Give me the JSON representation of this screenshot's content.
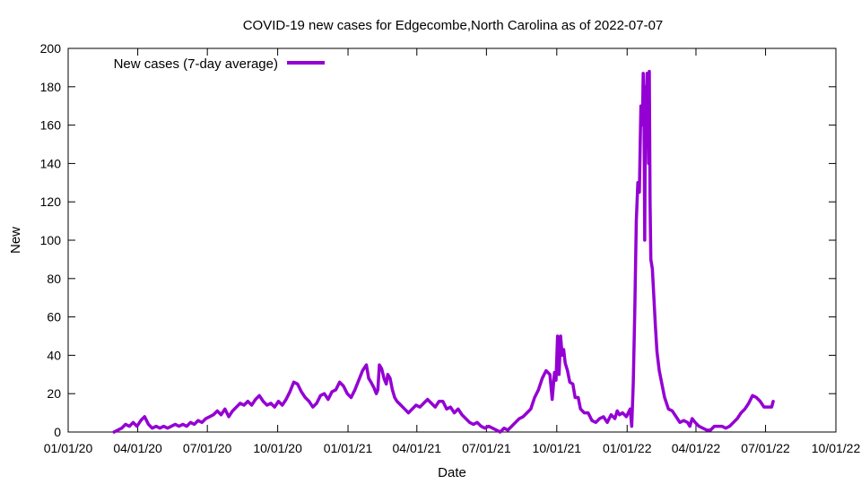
{
  "chart_data": {
    "type": "line",
    "title": "COVID-19 new cases for Edgecombe,North Carolina as of 2022-07-07",
    "xlabel": "Date",
    "ylabel": "New",
    "xlim": [
      0,
      1004
    ],
    "ylim": [
      0,
      200
    ],
    "y_ticks": [
      0,
      20,
      40,
      60,
      80,
      100,
      120,
      140,
      160,
      180,
      200
    ],
    "x_ticks": [
      {
        "day": 0,
        "label": "01/01/20"
      },
      {
        "day": 91,
        "label": "04/01/20"
      },
      {
        "day": 182,
        "label": "07/01/20"
      },
      {
        "day": 274,
        "label": "10/01/20"
      },
      {
        "day": 366,
        "label": "01/01/21"
      },
      {
        "day": 456,
        "label": "04/01/21"
      },
      {
        "day": 547,
        "label": "07/01/21"
      },
      {
        "day": 639,
        "label": "10/01/21"
      },
      {
        "day": 731,
        "label": "01/01/22"
      },
      {
        "day": 821,
        "label": "04/01/22"
      },
      {
        "day": 912,
        "label": "07/01/22"
      },
      {
        "day": 1004,
        "label": "10/01/22"
      }
    ],
    "legend_position": "top-left",
    "series": [
      {
        "name": "New cases (7-day average)",
        "color": "#9400d3",
        "x_unit": "days since 2020-01-01",
        "points": [
          [
            60,
            0
          ],
          [
            65,
            1
          ],
          [
            70,
            2
          ],
          [
            75,
            4
          ],
          [
            80,
            3
          ],
          [
            85,
            5
          ],
          [
            90,
            3
          ],
          [
            95,
            6
          ],
          [
            100,
            8
          ],
          [
            105,
            4
          ],
          [
            110,
            2
          ],
          [
            115,
            3
          ],
          [
            120,
            2
          ],
          [
            125,
            3
          ],
          [
            130,
            2
          ],
          [
            135,
            3
          ],
          [
            140,
            4
          ],
          [
            145,
            3
          ],
          [
            150,
            4
          ],
          [
            155,
            3
          ],
          [
            160,
            5
          ],
          [
            165,
            4
          ],
          [
            170,
            6
          ],
          [
            175,
            5
          ],
          [
            180,
            7
          ],
          [
            185,
            8
          ],
          [
            190,
            9
          ],
          [
            195,
            11
          ],
          [
            200,
            9
          ],
          [
            205,
            12
          ],
          [
            210,
            8
          ],
          [
            215,
            11
          ],
          [
            220,
            13
          ],
          [
            225,
            15
          ],
          [
            230,
            14
          ],
          [
            235,
            16
          ],
          [
            240,
            14
          ],
          [
            245,
            17
          ],
          [
            250,
            19
          ],
          [
            255,
            16
          ],
          [
            260,
            14
          ],
          [
            265,
            15
          ],
          [
            270,
            13
          ],
          [
            275,
            16
          ],
          [
            280,
            14
          ],
          [
            285,
            17
          ],
          [
            290,
            21
          ],
          [
            295,
            26
          ],
          [
            300,
            25
          ],
          [
            305,
            21
          ],
          [
            310,
            18
          ],
          [
            315,
            16
          ],
          [
            320,
            13
          ],
          [
            325,
            15
          ],
          [
            330,
            19
          ],
          [
            335,
            20
          ],
          [
            340,
            17
          ],
          [
            345,
            21
          ],
          [
            350,
            22
          ],
          [
            355,
            26
          ],
          [
            360,
            24
          ],
          [
            365,
            20
          ],
          [
            370,
            18
          ],
          [
            375,
            22
          ],
          [
            380,
            27
          ],
          [
            385,
            32
          ],
          [
            390,
            35
          ],
          [
            393,
            28
          ],
          [
            396,
            26
          ],
          [
            400,
            23
          ],
          [
            403,
            20
          ],
          [
            405,
            22
          ],
          [
            407,
            35
          ],
          [
            410,
            33
          ],
          [
            413,
            28
          ],
          [
            416,
            25
          ],
          [
            418,
            30
          ],
          [
            421,
            28
          ],
          [
            424,
            22
          ],
          [
            427,
            18
          ],
          [
            430,
            16
          ],
          [
            435,
            14
          ],
          [
            440,
            12
          ],
          [
            445,
            10
          ],
          [
            450,
            12
          ],
          [
            455,
            14
          ],
          [
            460,
            13
          ],
          [
            465,
            15
          ],
          [
            470,
            17
          ],
          [
            475,
            15
          ],
          [
            480,
            13
          ],
          [
            485,
            16
          ],
          [
            490,
            16
          ],
          [
            495,
            12
          ],
          [
            500,
            13
          ],
          [
            505,
            10
          ],
          [
            510,
            12
          ],
          [
            515,
            9
          ],
          [
            520,
            7
          ],
          [
            525,
            5
          ],
          [
            530,
            4
          ],
          [
            535,
            5
          ],
          [
            540,
            3
          ],
          [
            545,
            2
          ],
          [
            550,
            3
          ],
          [
            555,
            2
          ],
          [
            560,
            1
          ],
          [
            565,
            0
          ],
          [
            570,
            2
          ],
          [
            575,
            1
          ],
          [
            580,
            3
          ],
          [
            585,
            5
          ],
          [
            590,
            7
          ],
          [
            595,
            8
          ],
          [
            600,
            10
          ],
          [
            605,
            12
          ],
          [
            610,
            18
          ],
          [
            615,
            22
          ],
          [
            620,
            28
          ],
          [
            625,
            32
          ],
          [
            630,
            30
          ],
          [
            633,
            17
          ],
          [
            636,
            31
          ],
          [
            638,
            27
          ],
          [
            640,
            50
          ],
          [
            642,
            30
          ],
          [
            644,
            50
          ],
          [
            646,
            40
          ],
          [
            648,
            43
          ],
          [
            650,
            36
          ],
          [
            653,
            32
          ],
          [
            656,
            26
          ],
          [
            660,
            25
          ],
          [
            663,
            18
          ],
          [
            667,
            18
          ],
          [
            670,
            12
          ],
          [
            675,
            10
          ],
          [
            680,
            10
          ],
          [
            685,
            6
          ],
          [
            690,
            5
          ],
          [
            695,
            7
          ],
          [
            700,
            8
          ],
          [
            705,
            5
          ],
          [
            710,
            9
          ],
          [
            715,
            7
          ],
          [
            718,
            11
          ],
          [
            721,
            9
          ],
          [
            725,
            10
          ],
          [
            730,
            8
          ],
          [
            735,
            12
          ],
          [
            737,
            3
          ],
          [
            739,
            25
          ],
          [
            741,
            63
          ],
          [
            743,
            110
          ],
          [
            745,
            130
          ],
          [
            747,
            125
          ],
          [
            749,
            170
          ],
          [
            751,
            160
          ],
          [
            752,
            187
          ],
          [
            753,
            172
          ],
          [
            754,
            100
          ],
          [
            755,
            180
          ],
          [
            756,
            150
          ],
          [
            757,
            187
          ],
          [
            758,
            170
          ],
          [
            759,
            140
          ],
          [
            760,
            188
          ],
          [
            761,
            120
          ],
          [
            762,
            90
          ],
          [
            764,
            85
          ],
          [
            766,
            70
          ],
          [
            768,
            55
          ],
          [
            770,
            42
          ],
          [
            773,
            32
          ],
          [
            776,
            26
          ],
          [
            780,
            18
          ],
          [
            785,
            12
          ],
          [
            790,
            11
          ],
          [
            795,
            8
          ],
          [
            800,
            5
          ],
          [
            805,
            6
          ],
          [
            810,
            5
          ],
          [
            813,
            3
          ],
          [
            816,
            7
          ],
          [
            820,
            5
          ],
          [
            825,
            3
          ],
          [
            830,
            2
          ],
          [
            835,
            1
          ],
          [
            840,
            1
          ],
          [
            845,
            3
          ],
          [
            850,
            3
          ],
          [
            855,
            3
          ],
          [
            860,
            2
          ],
          [
            865,
            3
          ],
          [
            870,
            5
          ],
          [
            875,
            7
          ],
          [
            880,
            10
          ],
          [
            885,
            12
          ],
          [
            890,
            15
          ],
          [
            895,
            19
          ],
          [
            900,
            18
          ],
          [
            905,
            16
          ],
          [
            910,
            13
          ],
          [
            915,
            13
          ],
          [
            920,
            13
          ],
          [
            922,
            16
          ]
        ]
      }
    ]
  }
}
